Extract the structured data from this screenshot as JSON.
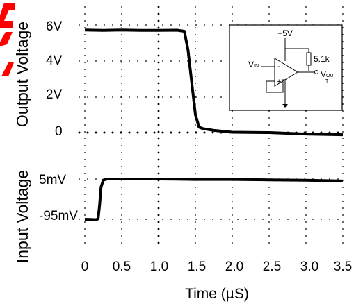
{
  "chart_data": [
    {
      "type": "line",
      "title": "",
      "ylabel": "Output Voltage",
      "xlabel": "",
      "xlim": [
        0,
        3.5
      ],
      "y_tick_labels": [
        "6V",
        "4V",
        "2V",
        "0"
      ],
      "ylim": [
        -0.8,
        6.6
      ],
      "series": [
        {
          "x": [
            0.0,
            0.25,
            0.5,
            0.75,
            1.0,
            1.25,
            1.35,
            1.4,
            1.45,
            1.5,
            1.55,
            1.6,
            1.75,
            2.0,
            2.5,
            3.0,
            3.5
          ],
          "y": [
            5.72,
            5.7,
            5.72,
            5.7,
            5.7,
            5.71,
            5.65,
            4.6,
            2.8,
            1.0,
            0.3,
            0.22,
            0.12,
            0.02,
            0.0,
            -0.08,
            -0.12
          ]
        }
      ],
      "color": "#000000"
    },
    {
      "type": "line",
      "title": "",
      "ylabel": "Input Voltage",
      "xlabel": "Time (µS)",
      "xlim": [
        0,
        3.5
      ],
      "x_tick_labels": [
        "0",
        "0.5",
        "1.0",
        "1.5",
        "2.0",
        "2.5",
        "3.0",
        "3.5"
      ],
      "y_tick_labels": [
        "5mV",
        "-95mV"
      ],
      "y_units": "mV",
      "ylim": [
        -120,
        15
      ],
      "series": [
        {
          "x": [
            0.0,
            0.15,
            0.18,
            0.2,
            0.22,
            0.25,
            0.3,
            0.5,
            1.0,
            1.5,
            2.0,
            2.5,
            3.0,
            3.5
          ],
          "y": [
            -95,
            -96,
            -94,
            -60,
            -15,
            2,
            5,
            5,
            5,
            4,
            4,
            3,
            2,
            0
          ]
        }
      ],
      "color": "#000000"
    }
  ],
  "inset": {
    "supply_label": "+5V",
    "resistor_label": "5.1k",
    "input_label": "V",
    "input_sub": "IN",
    "output_label": "V",
    "output_sub_1": "OU",
    "output_sub_2": "T",
    "minus_sign": "-",
    "plus_sign": "+"
  },
  "accent_color": "#ff0000",
  "watermark_text": "A"
}
